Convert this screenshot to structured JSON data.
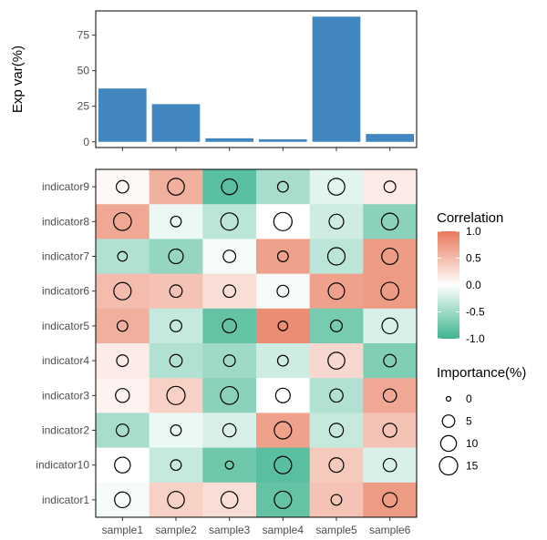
{
  "chart_data": [
    {
      "type": "bar",
      "ylabel": "Exp var(%)",
      "categories": [
        "sample1",
        "sample2",
        "sample3",
        "sample4",
        "sample5",
        "sample6"
      ],
      "values": [
        37.5,
        26.5,
        2.5,
        1.8,
        88,
        5.5
      ],
      "yticks": [
        0,
        25,
        50,
        75
      ],
      "ylim": [
        -4,
        92
      ],
      "color": "#4287C0",
      "grid": false
    },
    {
      "type": "heatmap",
      "x": [
        "sample1",
        "sample2",
        "sample3",
        "sample4",
        "sample5",
        "sample6"
      ],
      "y": [
        "indicator9",
        "indicator8",
        "indicator7",
        "indicator6",
        "indicator5",
        "indicator4",
        "indicator3",
        "indicator2",
        "indicator10",
        "indicator1"
      ],
      "correlation": [
        [
          0.05,
          0.6,
          -0.85,
          -0.45,
          -0.15,
          0.15
        ],
        [
          0.65,
          -0.1,
          -0.35,
          0.0,
          -0.25,
          -0.6
        ],
        [
          -0.4,
          -0.55,
          -0.05,
          0.7,
          -0.35,
          0.75
        ],
        [
          0.5,
          0.45,
          0.25,
          -0.05,
          0.7,
          0.75
        ],
        [
          0.6,
          -0.3,
          -0.8,
          0.85,
          -0.7,
          -0.2
        ],
        [
          0.15,
          -0.4,
          -0.5,
          -0.25,
          0.3,
          -0.65
        ],
        [
          0.1,
          0.35,
          -0.6,
          0.0,
          -0.4,
          0.65
        ],
        [
          -0.45,
          -0.1,
          -0.2,
          0.7,
          -0.3,
          0.45
        ],
        [
          0.0,
          -0.3,
          -0.75,
          -0.85,
          0.4,
          -0.2
        ],
        [
          -0.05,
          0.35,
          0.25,
          -0.8,
          0.45,
          0.75
        ]
      ],
      "importance": [
        [
          5,
          12,
          10,
          3,
          12,
          4
        ],
        [
          14,
          3,
          13,
          15,
          8,
          12
        ],
        [
          2,
          8,
          5,
          3,
          13,
          11
        ],
        [
          13,
          5,
          5,
          4,
          11,
          14
        ],
        [
          3,
          4,
          7,
          2,
          4,
          10
        ],
        [
          4,
          5,
          4,
          3,
          12,
          5
        ],
        [
          7,
          15,
          14,
          8,
          6,
          6
        ],
        [
          5,
          3,
          6,
          13,
          7,
          7
        ],
        [
          10,
          3,
          1,
          13,
          8,
          6
        ],
        [
          10,
          12,
          12,
          13,
          3,
          8
        ]
      ],
      "legends": {
        "correlation": {
          "title": "Correlation",
          "ticks": [
            "1.0",
            "0.5",
            "0.0",
            "-0.5",
            "-1.0"
          ],
          "tick_values": [
            1.0,
            0.5,
            0.0,
            -0.5,
            -1.0
          ],
          "low_color": "#3DB48F",
          "mid_color": "#FFFFFF",
          "high_color": "#E8795B"
        },
        "importance": {
          "title": "Importance(%)",
          "labels": [
            "0",
            "5",
            "10",
            "15"
          ],
          "values": [
            0,
            5,
            10,
            15
          ]
        }
      }
    }
  ]
}
